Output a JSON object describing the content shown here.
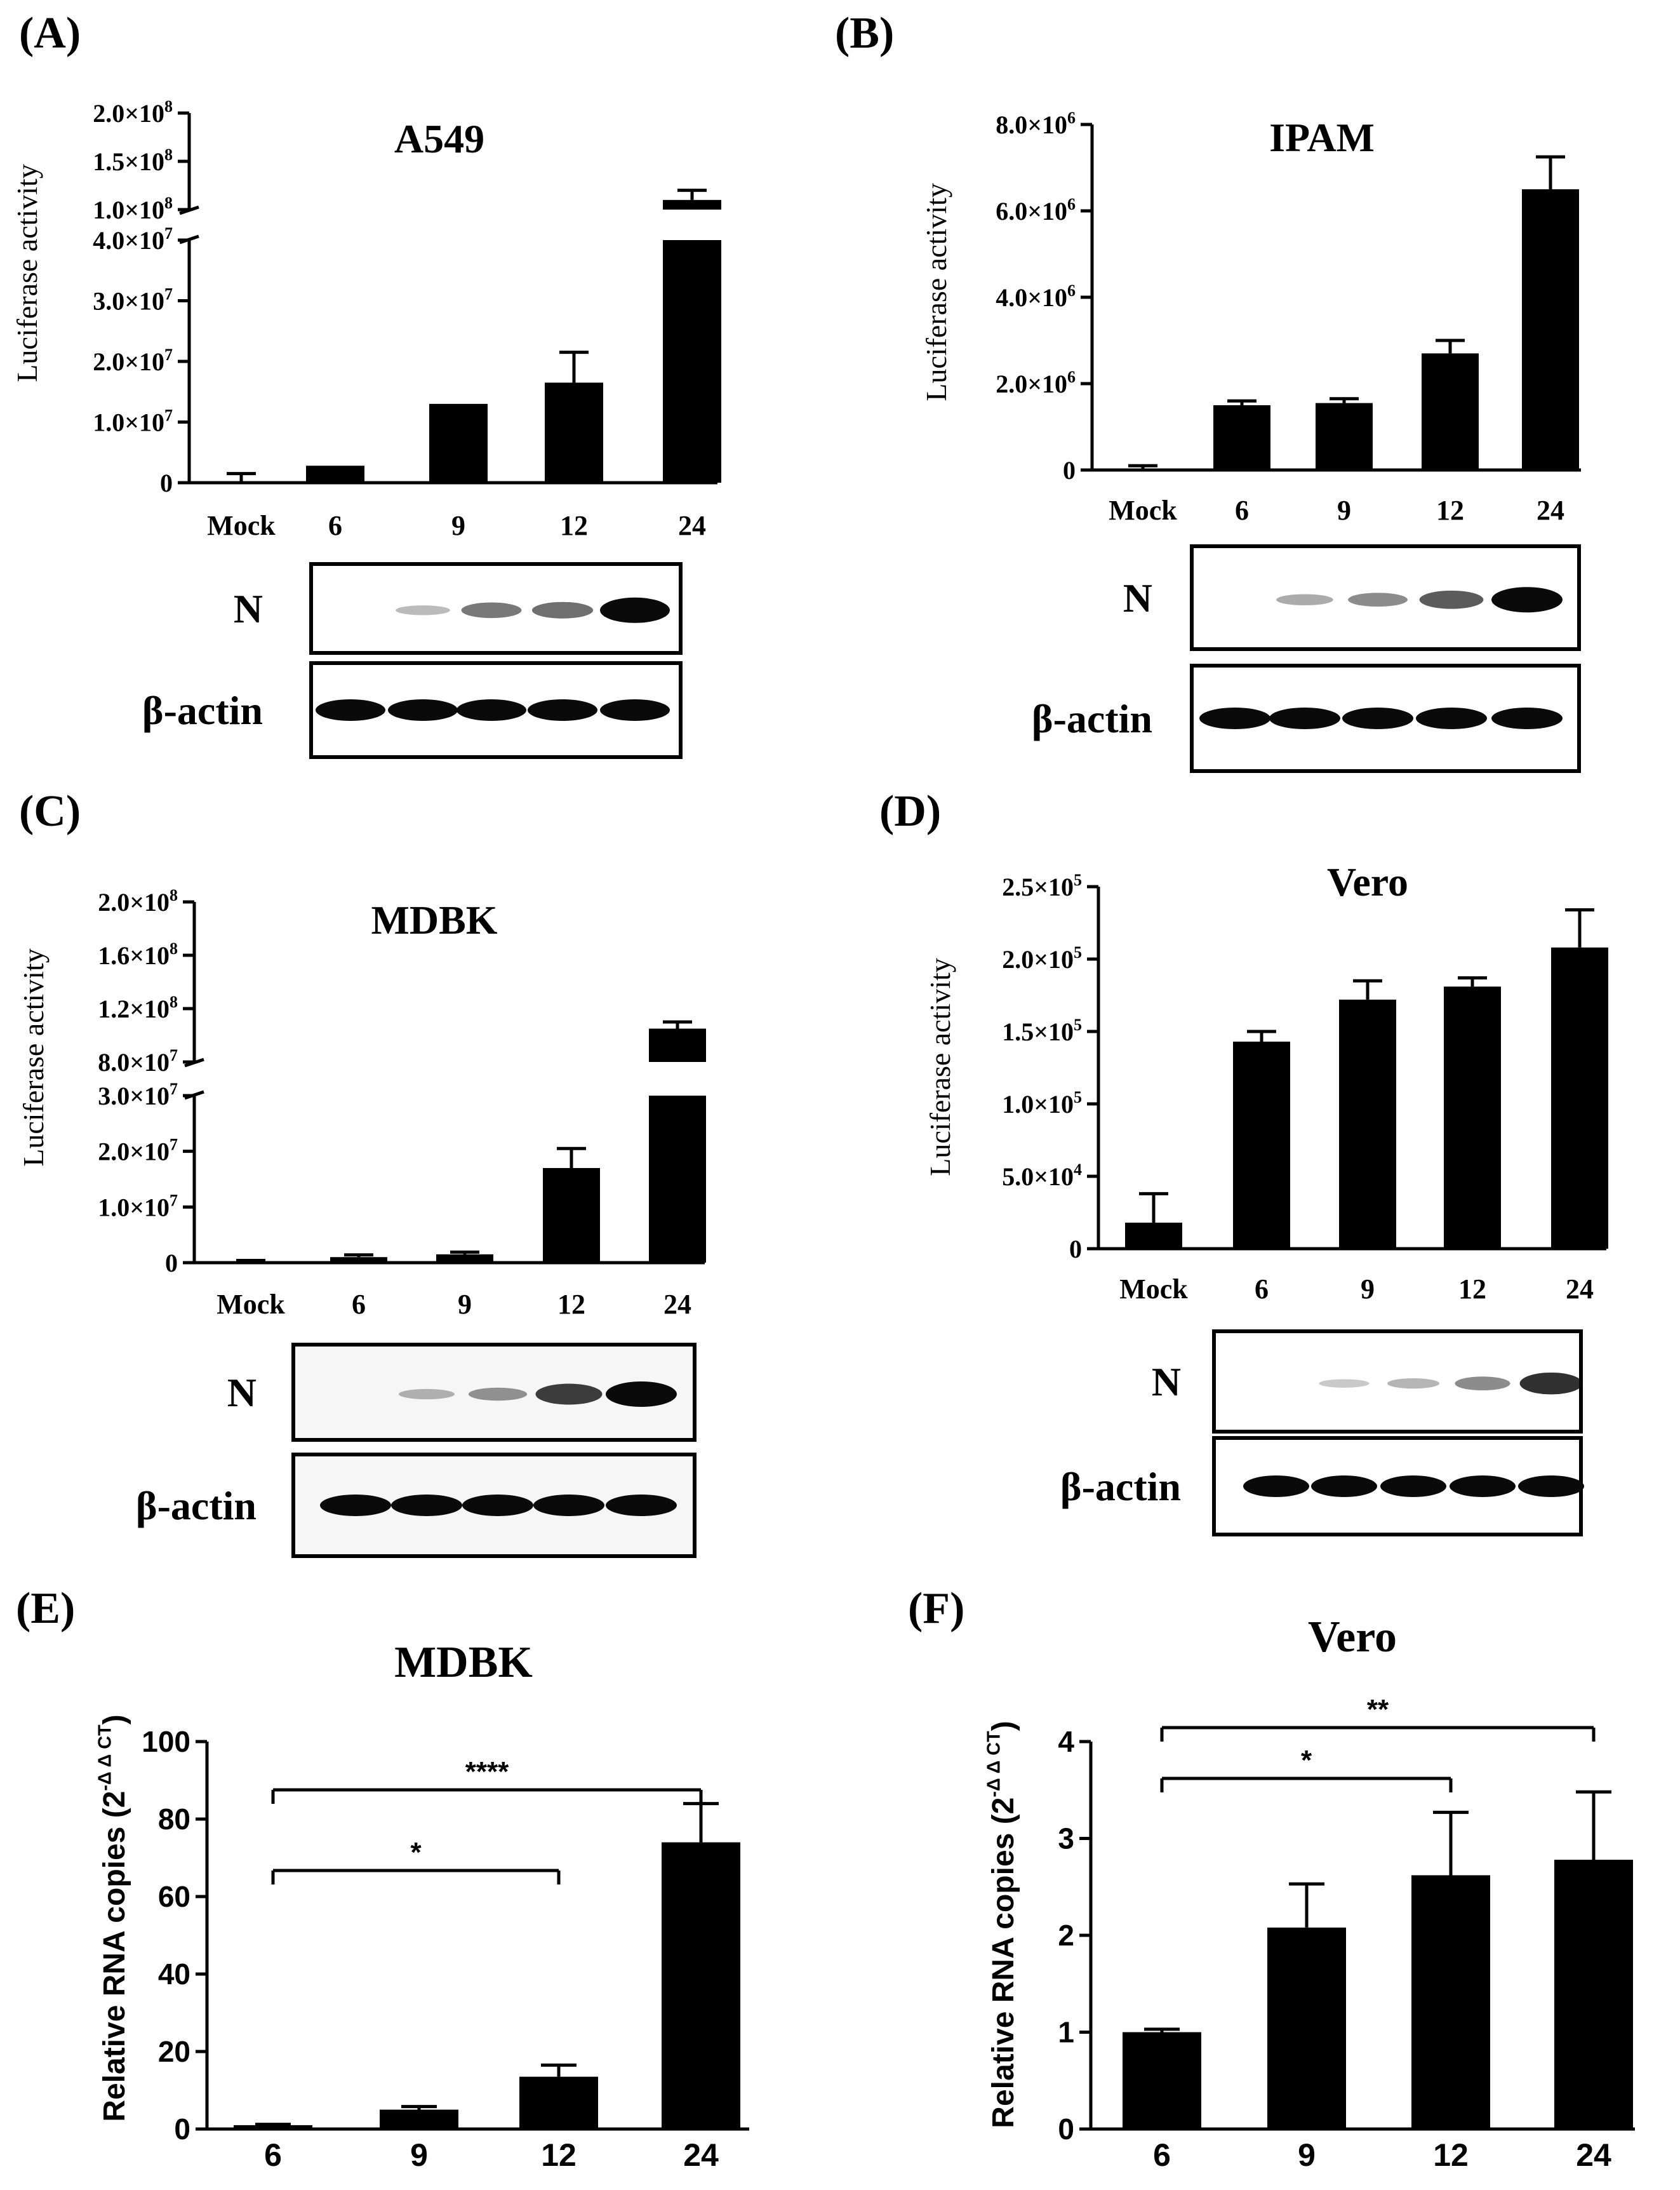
{
  "figure": {
    "panel_letters": [
      "(A)",
      "(B)",
      "(C)",
      "(D)",
      "(E)",
      "(F)"
    ],
    "colors": {
      "bar": "#000000",
      "text": "#000000",
      "background": "#ffffff",
      "band": "#0a0a0a"
    }
  },
  "chart_data": [
    {
      "id": "A",
      "type": "bar",
      "title": "A549",
      "ylabel": "Luciferase activity",
      "categories": [
        "Mock",
        "6",
        "9",
        "12",
        "24"
      ],
      "values": [
        0,
        2800000,
        13000000,
        16500000,
        110000000
      ],
      "errors": [
        1500000,
        0,
        0,
        5000000,
        10000000
      ],
      "axis_break": true,
      "lower_ylim": [
        0,
        40000000
      ],
      "upper_ylim": [
        100000000,
        200000000
      ],
      "yticks_lower": [
        "0",
        "1.0×10^7",
        "2.0×10^7",
        "3.0×10^7",
        "4.0×10^7"
      ],
      "yticks_upper": [
        "1.0×10^8",
        "1.5×10^8",
        "2.0×10^8"
      ],
      "blot": {
        "labels": [
          "N",
          "β-actin"
        ],
        "n_intensity": [
          0,
          0.12,
          0.45,
          0.5,
          1.0
        ]
      }
    },
    {
      "id": "B",
      "type": "bar",
      "title": "IPAM",
      "ylabel": "Luciferase activity",
      "categories": [
        "Mock",
        "6",
        "9",
        "12",
        "24"
      ],
      "values": [
        0,
        1500000,
        1550000,
        2700000,
        6500000
      ],
      "errors": [
        100000,
        100000,
        100000,
        300000,
        750000
      ],
      "ylim": [
        0,
        8000000
      ],
      "yticks": [
        "0",
        "2.0×10^6",
        "4.0×10^6",
        "6.0×10^6",
        "8.0×10^6"
      ],
      "blot": {
        "labels": [
          "N",
          "β-actin"
        ],
        "n_intensity": [
          0,
          0.2,
          0.35,
          0.6,
          1.0
        ]
      }
    },
    {
      "id": "C",
      "type": "bar",
      "title": "MDBK",
      "ylabel": "Luciferase activity",
      "categories": [
        "Mock",
        "6",
        "9",
        "12",
        "24"
      ],
      "values": [
        0,
        1000000,
        1500000,
        17000000,
        105000000
      ],
      "errors": [
        400000,
        400000,
        400000,
        3500000,
        5000000
      ],
      "axis_break": true,
      "lower_ylim": [
        0,
        30000000
      ],
      "upper_ylim": [
        80000000,
        200000000
      ],
      "yticks_lower": [
        "0",
        "1.0×10^7",
        "2.0×10^7",
        "3.0×10^7"
      ],
      "yticks_upper": [
        "8.0×10^7",
        "1.2×10^8",
        "1.6×10^8",
        "2.0×10^8"
      ],
      "blot": {
        "labels": [
          "N",
          "β-actin"
        ],
        "n_intensity": [
          0,
          0.15,
          0.3,
          0.75,
          1.0
        ]
      }
    },
    {
      "id": "D",
      "type": "bar",
      "title": "Vero",
      "ylabel": "Luciferase activity",
      "categories": [
        "Mock",
        "6",
        "9",
        "12",
        "24"
      ],
      "values": [
        18000,
        143000,
        172000,
        181000,
        208000
      ],
      "errors": [
        20000,
        7000,
        13000,
        6000,
        26000
      ],
      "ylim": [
        0,
        250000
      ],
      "yticks": [
        "0",
        "5.0×10^4",
        "1.0×10^5",
        "1.5×10^5",
        "2.0×10^5",
        "2.5×10^5"
      ],
      "blot": {
        "labels": [
          "N",
          "β-actin"
        ],
        "n_intensity": [
          0,
          0.05,
          0.15,
          0.35,
          0.8
        ]
      }
    },
    {
      "id": "E",
      "type": "bar",
      "title": "MDBK",
      "ylabel": "Relative RNA copies (2",
      "ylabel_sup": "-Δ Δ CT",
      "ylabel_end": ")",
      "categories": [
        "6",
        "9",
        "12",
        "24"
      ],
      "values": [
        1,
        5,
        13.5,
        74
      ],
      "errors": [
        0.2,
        0.8,
        3,
        10
      ],
      "ylim": [
        0,
        100
      ],
      "yticks": [
        "0",
        "20",
        "40",
        "60",
        "80",
        "100"
      ],
      "significance": [
        {
          "from": "6",
          "to": "12",
          "label": "*"
        },
        {
          "from": "6",
          "to": "24",
          "label": "****"
        }
      ]
    },
    {
      "id": "F",
      "type": "bar",
      "title": "Vero",
      "ylabel": "Relative RNA copies (2",
      "ylabel_sup": "-Δ Δ CT",
      "ylabel_end": ")",
      "categories": [
        "6",
        "9",
        "12",
        "24"
      ],
      "values": [
        1.0,
        2.08,
        2.62,
        2.78
      ],
      "errors": [
        0.03,
        0.45,
        0.65,
        0.7
      ],
      "ylim": [
        0,
        4
      ],
      "yticks": [
        "0",
        "1",
        "2",
        "3",
        "4"
      ],
      "significance": [
        {
          "from": "6",
          "to": "12",
          "label": "*"
        },
        {
          "from": "6",
          "to": "24",
          "label": "**"
        }
      ]
    }
  ]
}
